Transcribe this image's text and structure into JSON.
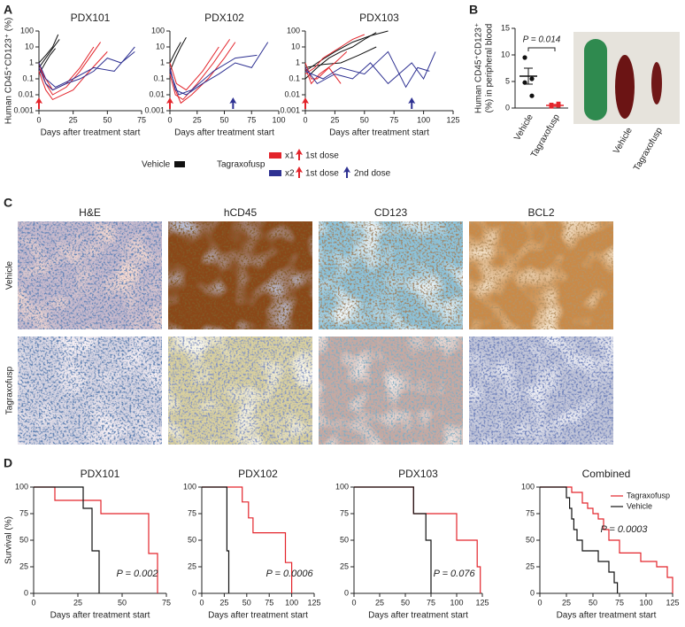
{
  "panel_labels": [
    "A",
    "B",
    "C",
    "D"
  ],
  "chart_data": [
    {
      "type": "line",
      "title": "PDX101",
      "xlabel": "Days after treatment start",
      "ylabel": "Human CD45⁺CD123⁺ (%)",
      "log_y": true,
      "xlim": [
        0,
        75
      ],
      "xticks": [
        0,
        25,
        50,
        75
      ],
      "ylim": [
        0.001,
        100
      ],
      "yticks": [
        0.001,
        0.01,
        0.1,
        1,
        10,
        100
      ],
      "dose_markers": [
        {
          "x": 0,
          "color": "#e3242b"
        }
      ],
      "series": [
        {
          "color": "#111111",
          "x": [
            0,
            5,
            10,
            15
          ],
          "values": [
            0.5,
            2,
            8,
            30
          ]
        },
        {
          "color": "#111111",
          "x": [
            0,
            5,
            10,
            14
          ],
          "values": [
            1,
            3,
            10,
            60
          ]
        },
        {
          "color": "#111111",
          "x": [
            0,
            4,
            8,
            12
          ],
          "values": [
            0.2,
            0.8,
            3,
            8
          ]
        },
        {
          "color": "#e3242b",
          "x": [
            0,
            5,
            10,
            20,
            30,
            40
          ],
          "values": [
            0.5,
            0.1,
            0.02,
            0.05,
            0.5,
            10
          ]
        },
        {
          "color": "#e3242b",
          "x": [
            0,
            5,
            10,
            20,
            30,
            45
          ],
          "values": [
            1,
            0.05,
            0.01,
            0.03,
            0.3,
            20
          ]
        },
        {
          "color": "#e3242b",
          "x": [
            0,
            5,
            10,
            25,
            35,
            50
          ],
          "values": [
            0.3,
            0.02,
            0.005,
            0.02,
            0.2,
            5
          ]
        },
        {
          "color": "#2e3192",
          "x": [
            0,
            5,
            10,
            20,
            30,
            40,
            50,
            60,
            70
          ],
          "values": [
            0.5,
            0.05,
            0.02,
            0.05,
            0.1,
            0.3,
            2,
            1,
            5
          ]
        },
        {
          "color": "#2e3192",
          "x": [
            0,
            5,
            12,
            25,
            40,
            55,
            65,
            70
          ],
          "values": [
            1,
            0.1,
            0.03,
            0.1,
            0.5,
            0.3,
            3,
            10
          ]
        }
      ]
    },
    {
      "type": "line",
      "title": "PDX102",
      "xlabel": "Days after treatment start",
      "log_y": true,
      "xlim": [
        0,
        100
      ],
      "xticks": [
        0,
        25,
        50,
        75,
        100
      ],
      "ylim": [
        0.001,
        100
      ],
      "yticks": [
        0.001,
        0.01,
        0.1,
        1,
        10,
        100
      ],
      "dose_markers": [
        {
          "x": 0,
          "color": "#e3242b"
        },
        {
          "x": 58,
          "color": "#2e3192"
        }
      ],
      "series": [
        {
          "color": "#111111",
          "x": [
            0,
            5,
            10,
            15
          ],
          "values": [
            0.3,
            2,
            10,
            40
          ]
        },
        {
          "color": "#111111",
          "x": [
            0,
            5,
            10
          ],
          "values": [
            1,
            5,
            20
          ]
        },
        {
          "color": "#e3242b",
          "x": [
            0,
            5,
            10,
            20,
            35,
            50,
            60
          ],
          "values": [
            0.5,
            0.02,
            0.003,
            0.01,
            0.1,
            2,
            20
          ]
        },
        {
          "color": "#e3242b",
          "x": [
            0,
            5,
            12,
            25,
            40,
            55
          ],
          "values": [
            0.2,
            0.01,
            0.005,
            0.05,
            1,
            30
          ]
        },
        {
          "color": "#e3242b",
          "x": [
            0,
            6,
            15,
            30,
            45
          ],
          "values": [
            1,
            0.05,
            0.02,
            0.3,
            10
          ]
        },
        {
          "color": "#2e3192",
          "x": [
            0,
            5,
            15,
            30,
            45,
            60,
            75,
            90
          ],
          "values": [
            0.5,
            0.02,
            0.01,
            0.05,
            0.2,
            1,
            0.5,
            20
          ]
        },
        {
          "color": "#2e3192",
          "x": [
            0,
            8,
            20,
            40,
            60,
            80
          ],
          "values": [
            0.3,
            0.01,
            0.02,
            0.3,
            2,
            3
          ]
        }
      ]
    },
    {
      "type": "line",
      "title": "PDX103",
      "xlabel": "Days after treatment start",
      "log_y": true,
      "xlim": [
        0,
        125
      ],
      "xticks": [
        0,
        25,
        50,
        75,
        100,
        125
      ],
      "ylim": [
        0.001,
        100
      ],
      "yticks": [
        0.001,
        0.01,
        0.1,
        1,
        10,
        100
      ],
      "dose_markers": [
        {
          "x": 0,
          "color": "#e3242b"
        },
        {
          "x": 90,
          "color": "#2e3192"
        }
      ],
      "series": [
        {
          "color": "#111111",
          "x": [
            0,
            10,
            20,
            30,
            40,
            50,
            60
          ],
          "values": [
            0.1,
            0.5,
            2,
            5,
            10,
            30,
            80
          ]
        },
        {
          "color": "#111111",
          "x": [
            0,
            10,
            25,
            40,
            55,
            70
          ],
          "values": [
            0.3,
            1,
            5,
            20,
            50,
            100
          ]
        },
        {
          "color": "#111111",
          "x": [
            0,
            15,
            30,
            45,
            60
          ],
          "values": [
            0.5,
            0.8,
            1,
            3,
            10
          ]
        },
        {
          "color": "#e3242b",
          "x": [
            0,
            5,
            10,
            20,
            30
          ],
          "values": [
            1,
            0.1,
            0.1,
            0.5,
            0.05
          ]
        },
        {
          "color": "#e3242b",
          "x": [
            0,
            5,
            12,
            25,
            35
          ],
          "values": [
            0.5,
            0.05,
            0.2,
            1,
            5
          ]
        },
        {
          "color": "#e3242b",
          "x": [
            0,
            8,
            15,
            30,
            40,
            50
          ],
          "values": [
            0.2,
            0.5,
            2,
            10,
            30,
            60
          ]
        },
        {
          "color": "#2e3192",
          "x": [
            0,
            10,
            25,
            40,
            55,
            70,
            90,
            100,
            110
          ],
          "values": [
            0.5,
            0.05,
            0.2,
            0.1,
            1,
            0.05,
            1,
            0.1,
            5
          ]
        },
        {
          "color": "#2e3192",
          "x": [
            0,
            15,
            30,
            50,
            70,
            85,
            95,
            105
          ],
          "values": [
            0.3,
            0.1,
            0.5,
            0.2,
            5,
            0.03,
            0.5,
            0.3
          ]
        }
      ]
    },
    {
      "type": "dot",
      "ylabel": [
        "Human CD45⁺CD123⁺",
        "(%) in peripheral blood"
      ],
      "annotation": "P = 0.014",
      "categories": [
        "Vehicle",
        "Tagraxofusp"
      ],
      "colors": [
        "#111111",
        "#e3242b"
      ],
      "points": [
        [
          9.5,
          5.5,
          4.8,
          2.3
        ],
        [
          0.3,
          0.5,
          0.6,
          0.8
        ]
      ],
      "means": [
        6,
        0.5
      ],
      "errors": [
        1.5,
        0.2
      ],
      "ylim": [
        0,
        15
      ],
      "yticks": [
        0,
        5,
        10,
        15
      ]
    },
    {
      "type": "km",
      "title": "PDX101",
      "xlabel": "Days after treatment start",
      "ylabel": "Survival (%)",
      "annotation": "P = 0.002",
      "xlim": [
        0,
        75
      ],
      "xticks": [
        0,
        25,
        50,
        75
      ],
      "ylim": [
        0,
        100
      ],
      "yticks": [
        0,
        25,
        50,
        75,
        100
      ],
      "series": [
        {
          "color": "#e3242b",
          "x": [
            0,
            12,
            38,
            65,
            70
          ],
          "values": [
            100,
            87.5,
            75,
            37.5,
            0
          ]
        },
        {
          "color": "#111111",
          "x": [
            0,
            28,
            33,
            37
          ],
          "values": [
            100,
            80,
            40,
            0
          ]
        }
      ]
    },
    {
      "type": "km",
      "title": "PDX102",
      "xlabel": "Days after treatment start",
      "annotation": "P = 0.0006",
      "xlim": [
        0,
        125
      ],
      "xticks": [
        0,
        25,
        50,
        75,
        100,
        125
      ],
      "ylim": [
        0,
        100
      ],
      "yticks": [
        0,
        25,
        50,
        75,
        100
      ],
      "series": [
        {
          "color": "#e3242b",
          "x": [
            0,
            45,
            52,
            57,
            93,
            100
          ],
          "values": [
            100,
            86,
            71,
            57,
            29,
            0
          ]
        },
        {
          "color": "#111111",
          "x": [
            0,
            28,
            30
          ],
          "values": [
            100,
            40,
            0
          ]
        }
      ]
    },
    {
      "type": "km",
      "title": "PDX103",
      "xlabel": "Days after treatment start",
      "annotation": "P = 0.076",
      "xlim": [
        0,
        125
      ],
      "xticks": [
        0,
        25,
        50,
        75,
        100,
        125
      ],
      "ylim": [
        0,
        100
      ],
      "yticks": [
        0,
        25,
        50,
        75,
        100
      ],
      "series": [
        {
          "color": "#e3242b",
          "x": [
            0,
            58,
            100,
            120,
            123
          ],
          "values": [
            100,
            75,
            50,
            25,
            0
          ]
        },
        {
          "color": "#111111",
          "x": [
            0,
            58,
            70,
            75
          ],
          "values": [
            100,
            75,
            50,
            0
          ]
        }
      ]
    },
    {
      "type": "km",
      "title": "Combined",
      "xlabel": "Days after treatment start",
      "annotation": "P = 0.0003",
      "legend": "top-right",
      "xlim": [
        0,
        125
      ],
      "xticks": [
        0,
        25,
        50,
        75,
        100,
        125
      ],
      "ylim": [
        0,
        100
      ],
      "yticks": [
        0,
        25,
        50,
        75,
        100
      ],
      "series": [
        {
          "name": "Tagraxofusp",
          "color": "#e3242b",
          "x": [
            0,
            30,
            40,
            45,
            50,
            55,
            60,
            65,
            75,
            95,
            110,
            120,
            125
          ],
          "values": [
            100,
            95,
            85,
            80,
            75,
            70,
            60,
            50,
            38,
            30,
            25,
            15,
            0
          ]
        },
        {
          "name": "Vehicle",
          "color": "#111111",
          "x": [
            0,
            25,
            28,
            30,
            32,
            35,
            40,
            55,
            65,
            70,
            73
          ],
          "values": [
            100,
            90,
            80,
            70,
            60,
            50,
            40,
            30,
            20,
            10,
            0
          ]
        }
      ]
    }
  ],
  "legend_a": {
    "vehicle": "Vehicle",
    "tagraxofusp": "Tagraxofusp",
    "x1": "x1",
    "x2": "x2",
    "first_dose": "1st dose",
    "second_dose": "2nd dose"
  },
  "photo": {
    "labels": [
      "Vehicle",
      "Tagraxofusp"
    ]
  },
  "histology": {
    "columns": [
      "H&E",
      "hCD45",
      "CD123",
      "BCL2"
    ],
    "rows": [
      "Vehicle",
      "Tagraxofusp"
    ]
  }
}
